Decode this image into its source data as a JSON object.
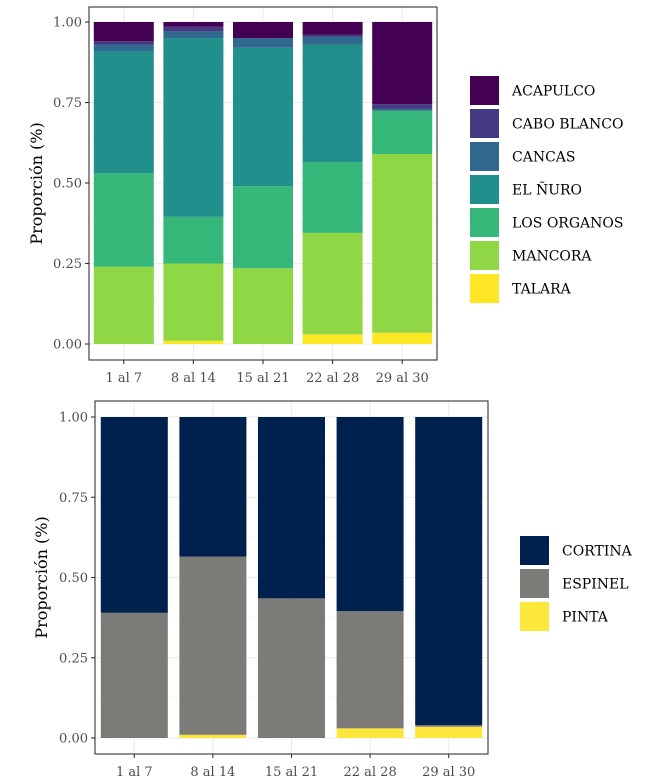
{
  "chart_data": [
    {
      "type": "bar",
      "stacked": true,
      "normalized": true,
      "ylabel": "Proporción (%)",
      "xlabel": "",
      "ylim": [
        0,
        1
      ],
      "yticks": [
        "0.00",
        "0.25",
        "0.50",
        "0.75",
        "1.00"
      ],
      "grid": true,
      "legend_position": "right",
      "categories": [
        "1 al 7",
        "8 al 14",
        "15 al 21",
        "22 al 28",
        "29 al 30"
      ],
      "series": [
        {
          "name": "TALARA",
          "color": "#FDE725",
          "values": [
            0.0,
            0.01,
            0.0,
            0.03,
            0.035
          ]
        },
        {
          "name": "MANCORA",
          "color": "#8FD744",
          "values": [
            0.24,
            0.24,
            0.235,
            0.315,
            0.555
          ]
        },
        {
          "name": "LOS ORGANOS",
          "color": "#35B779",
          "values": [
            0.29,
            0.145,
            0.255,
            0.22,
            0.135
          ]
        },
        {
          "name": "EL ÑURO",
          "color": "#21908C",
          "values": [
            0.38,
            0.555,
            0.43,
            0.365,
            0.0
          ]
        },
        {
          "name": "CANCAS",
          "color": "#31688E",
          "values": [
            0.02,
            0.02,
            0.03,
            0.025,
            0.005
          ]
        },
        {
          "name": "CABO BLANCO",
          "color": "#443A83",
          "values": [
            0.01,
            0.015,
            0.0,
            0.005,
            0.015
          ]
        },
        {
          "name": "ACAPULCO",
          "color": "#440154",
          "values": [
            0.06,
            0.015,
            0.05,
            0.04,
            0.255
          ]
        }
      ],
      "legend_order": [
        "ACAPULCO",
        "CABO BLANCO",
        "CANCAS",
        "EL ÑURO",
        "LOS ORGANOS",
        "MANCORA",
        "TALARA"
      ]
    },
    {
      "type": "bar",
      "stacked": true,
      "normalized": true,
      "ylabel": "Proporción (%)",
      "xlabel": "",
      "ylim": [
        0,
        1
      ],
      "yticks": [
        "0.00",
        "0.25",
        "0.50",
        "0.75",
        "1.00"
      ],
      "grid": true,
      "legend_position": "right",
      "categories": [
        "1 al 7",
        "8 al 14",
        "15 al 21",
        "22 al 28",
        "29 al 30"
      ],
      "series": [
        {
          "name": "PINTA",
          "color": "#FDE73A",
          "values": [
            0.0,
            0.01,
            0.0,
            0.03,
            0.035
          ]
        },
        {
          "name": "ESPINEL",
          "color": "#7C7B78",
          "values": [
            0.39,
            0.555,
            0.435,
            0.365,
            0.005
          ]
        },
        {
          "name": "CORTINA",
          "color": "#00204D",
          "values": [
            0.61,
            0.435,
            0.565,
            0.605,
            0.96
          ]
        }
      ],
      "legend_order": [
        "CORTINA",
        "ESPINEL",
        "PINTA"
      ]
    }
  ]
}
